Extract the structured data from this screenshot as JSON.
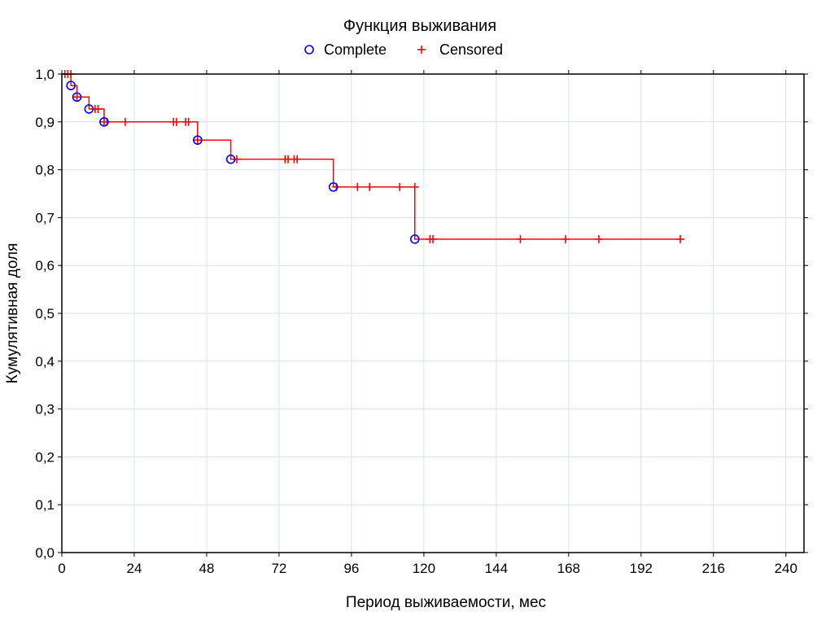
{
  "chart_data": {
    "type": "line",
    "subtype": "kaplan-meier survival curve",
    "title": "Функция выживания",
    "xlabel": "Период выживаемости, мес",
    "ylabel": "Кумулятивная доля",
    "xlim": [
      0,
      246
    ],
    "ylim": [
      0,
      1.0
    ],
    "xticks": [
      0,
      24,
      48,
      72,
      96,
      120,
      144,
      168,
      192,
      216,
      240
    ],
    "yticks": [
      0.0,
      0.1,
      0.2,
      0.3,
      0.4,
      0.5,
      0.6,
      0.7,
      0.8,
      0.9,
      1.0
    ],
    "ytick_labels": [
      "0,0",
      "0,1",
      "0,2",
      "0,3",
      "0,4",
      "0,5",
      "0,6",
      "0,7",
      "0,8",
      "0,9",
      "1,0"
    ],
    "xtick_labels": [
      "0",
      "24",
      "48",
      "72",
      "96",
      "120",
      "144",
      "168",
      "192",
      "216",
      "240"
    ],
    "grid": true,
    "legend": {
      "placement": "top-center",
      "entries": [
        {
          "label": "Complete",
          "marker": "circle",
          "color": "#0000ff"
        },
        {
          "label": "Censored",
          "marker": "plus",
          "color": "#ff0000"
        }
      ]
    },
    "series": [
      {
        "name": "Функция выживания",
        "color": "#ff0000",
        "step_curve": [
          [
            0,
            1.0
          ],
          [
            3,
            0.976
          ],
          [
            5,
            0.952
          ],
          [
            9,
            0.927
          ],
          [
            14,
            0.9
          ],
          [
            45,
            0.862
          ],
          [
            56,
            0.822
          ],
          [
            90,
            0.764
          ],
          [
            117,
            0.655
          ],
          [
            205,
            0.655
          ]
        ],
        "complete_events": [
          {
            "x": 3,
            "y": 0.976
          },
          {
            "x": 5,
            "y": 0.952
          },
          {
            "x": 9,
            "y": 0.927
          },
          {
            "x": 14,
            "y": 0.9
          },
          {
            "x": 45,
            "y": 0.862
          },
          {
            "x": 56,
            "y": 0.822
          },
          {
            "x": 90,
            "y": 0.764
          },
          {
            "x": 117,
            "y": 0.655
          }
        ],
        "censored_events": [
          {
            "x": 1,
            "y": 1.0
          },
          {
            "x": 2,
            "y": 1.0
          },
          {
            "x": 3,
            "y": 1.0
          },
          {
            "x": 5,
            "y": 0.952
          },
          {
            "x": 11,
            "y": 0.927
          },
          {
            "x": 12,
            "y": 0.927
          },
          {
            "x": 14,
            "y": 0.9
          },
          {
            "x": 15,
            "y": 0.9
          },
          {
            "x": 21,
            "y": 0.9
          },
          {
            "x": 37,
            "y": 0.9
          },
          {
            "x": 38,
            "y": 0.9
          },
          {
            "x": 41,
            "y": 0.9
          },
          {
            "x": 42,
            "y": 0.9
          },
          {
            "x": 45,
            "y": 0.862
          },
          {
            "x": 58,
            "y": 0.822
          },
          {
            "x": 74,
            "y": 0.822
          },
          {
            "x": 75,
            "y": 0.822
          },
          {
            "x": 77,
            "y": 0.822
          },
          {
            "x": 78,
            "y": 0.822
          },
          {
            "x": 91,
            "y": 0.764
          },
          {
            "x": 98,
            "y": 0.764
          },
          {
            "x": 102,
            "y": 0.764
          },
          {
            "x": 112,
            "y": 0.764
          },
          {
            "x": 117,
            "y": 0.764
          },
          {
            "x": 122,
            "y": 0.655
          },
          {
            "x": 123,
            "y": 0.655
          },
          {
            "x": 152,
            "y": 0.655
          },
          {
            "x": 167,
            "y": 0.655
          },
          {
            "x": 178,
            "y": 0.655
          },
          {
            "x": 205,
            "y": 0.655
          }
        ]
      }
    ]
  }
}
